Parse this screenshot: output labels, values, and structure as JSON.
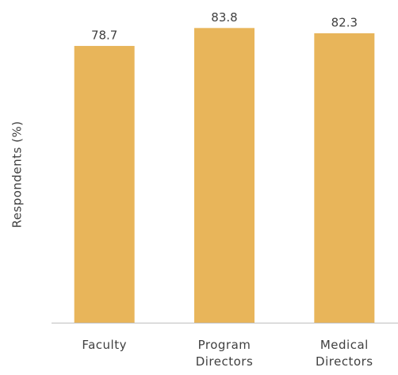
{
  "chart_data": {
    "type": "bar",
    "ylabel": "Respondents (%)",
    "categories": [
      "Faculty",
      "Program Directors",
      "Medical Directors"
    ],
    "values": [
      78.7,
      83.8,
      82.3
    ],
    "color": "#e8b55a",
    "ylim": [
      0,
      85
    ]
  }
}
